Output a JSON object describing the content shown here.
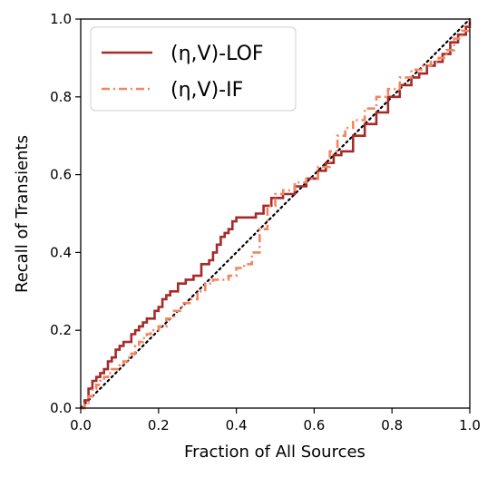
{
  "chart_data": {
    "type": "line",
    "title": "",
    "xlabel": "Fraction of All Sources",
    "ylabel": "Recall of Transients",
    "xlim": [
      0,
      1
    ],
    "ylim": [
      0,
      1
    ],
    "xticks": [
      "0.0",
      "0.2",
      "0.4",
      "0.6",
      "0.8",
      "1.0"
    ],
    "yticks": [
      "0.0",
      "0.2",
      "0.4",
      "0.6",
      "0.8",
      "1.0"
    ],
    "grid": false,
    "legend_position": "top-left",
    "legend_entries": [
      "(η,V)-LOF",
      "(η,V)-IF"
    ],
    "series": [
      {
        "name": "(η,V)-LOF",
        "color": "#a52a2a",
        "style": "solid",
        "x": [
          0,
          0.01,
          0.02,
          0.03,
          0.04,
          0.05,
          0.06,
          0.07,
          0.08,
          0.09,
          0.1,
          0.11,
          0.12,
          0.13,
          0.14,
          0.15,
          0.16,
          0.17,
          0.18,
          0.19,
          0.2,
          0.21,
          0.22,
          0.23,
          0.24,
          0.25,
          0.27,
          0.29,
          0.31,
          0.33,
          0.34,
          0.35,
          0.36,
          0.37,
          0.38,
          0.39,
          0.4,
          0.42,
          0.44,
          0.45,
          0.47,
          0.49,
          0.5,
          0.52,
          0.55,
          0.58,
          0.61,
          0.63,
          0.65,
          0.67,
          0.7,
          0.73,
          0.76,
          0.79,
          0.82,
          0.85,
          0.87,
          0.89,
          0.91,
          0.93,
          0.95,
          0.97,
          0.99,
          1.0
        ],
        "y": [
          0,
          0.02,
          0.05,
          0.07,
          0.08,
          0.09,
          0.1,
          0.12,
          0.13,
          0.15,
          0.16,
          0.17,
          0.17,
          0.19,
          0.2,
          0.21,
          0.22,
          0.23,
          0.23,
          0.25,
          0.26,
          0.28,
          0.29,
          0.3,
          0.3,
          0.32,
          0.33,
          0.34,
          0.37,
          0.38,
          0.4,
          0.42,
          0.44,
          0.45,
          0.46,
          0.48,
          0.49,
          0.49,
          0.49,
          0.5,
          0.52,
          0.54,
          0.54,
          0.55,
          0.57,
          0.59,
          0.61,
          0.63,
          0.65,
          0.66,
          0.7,
          0.73,
          0.76,
          0.8,
          0.83,
          0.85,
          0.86,
          0.88,
          0.89,
          0.91,
          0.94,
          0.96,
          0.98,
          1.0
        ]
      },
      {
        "name": "(η,V)-IF",
        "color": "#f4845f",
        "style": "dashdot",
        "x": [
          0,
          0.01,
          0.02,
          0.03,
          0.04,
          0.05,
          0.06,
          0.07,
          0.08,
          0.09,
          0.1,
          0.11,
          0.12,
          0.13,
          0.14,
          0.15,
          0.16,
          0.17,
          0.18,
          0.19,
          0.2,
          0.22,
          0.24,
          0.26,
          0.28,
          0.3,
          0.32,
          0.34,
          0.36,
          0.38,
          0.4,
          0.42,
          0.44,
          0.46,
          0.48,
          0.5,
          0.52,
          0.55,
          0.58,
          0.61,
          0.64,
          0.66,
          0.68,
          0.7,
          0.73,
          0.76,
          0.79,
          0.82,
          0.85,
          0.88,
          0.9,
          0.92,
          0.94,
          0.96,
          0.98,
          1.0
        ],
        "y": [
          0,
          0.01,
          0.03,
          0.05,
          0.06,
          0.07,
          0.08,
          0.09,
          0.1,
          0.1,
          0.11,
          0.12,
          0.13,
          0.14,
          0.16,
          0.17,
          0.18,
          0.19,
          0.2,
          0.2,
          0.21,
          0.23,
          0.25,
          0.27,
          0.28,
          0.3,
          0.32,
          0.33,
          0.33,
          0.34,
          0.36,
          0.37,
          0.4,
          0.46,
          0.52,
          0.55,
          0.56,
          0.58,
          0.59,
          0.62,
          0.66,
          0.7,
          0.72,
          0.74,
          0.77,
          0.8,
          0.82,
          0.85,
          0.87,
          0.88,
          0.89,
          0.9,
          0.92,
          0.95,
          0.97,
          1.0
        ]
      }
    ],
    "reference_line": {
      "style": "dotted",
      "color": "#000000",
      "x": [
        0,
        1
      ],
      "y": [
        0,
        1
      ]
    }
  }
}
